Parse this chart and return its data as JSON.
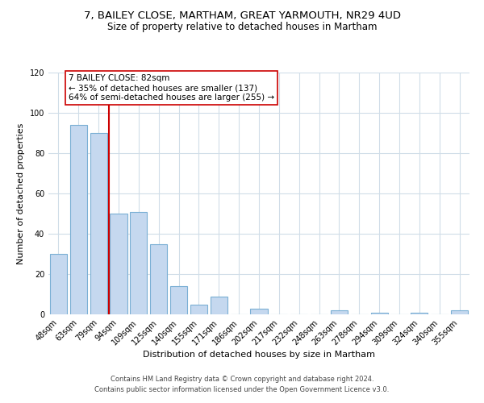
{
  "title": "7, BAILEY CLOSE, MARTHAM, GREAT YARMOUTH, NR29 4UD",
  "subtitle": "Size of property relative to detached houses in Martham",
  "xlabel": "Distribution of detached houses by size in Martham",
  "ylabel": "Number of detached properties",
  "bar_labels": [
    "48sqm",
    "63sqm",
    "79sqm",
    "94sqm",
    "109sqm",
    "125sqm",
    "140sqm",
    "155sqm",
    "171sqm",
    "186sqm",
    "202sqm",
    "217sqm",
    "232sqm",
    "248sqm",
    "263sqm",
    "278sqm",
    "294sqm",
    "309sqm",
    "324sqm",
    "340sqm",
    "355sqm"
  ],
  "bar_values": [
    30,
    94,
    90,
    50,
    51,
    35,
    14,
    5,
    9,
    0,
    3,
    0,
    0,
    0,
    2,
    0,
    1,
    0,
    1,
    0,
    2
  ],
  "bar_color": "#c5d8ef",
  "bar_edge_color": "#7aafd4",
  "vline_color": "#cc0000",
  "annotation_text": "7 BAILEY CLOSE: 82sqm\n← 35% of detached houses are smaller (137)\n64% of semi-detached houses are larger (255) →",
  "annotation_box_color": "#ffffff",
  "annotation_box_edge": "#cc0000",
  "ylim": [
    0,
    120
  ],
  "yticks": [
    0,
    20,
    40,
    60,
    80,
    100,
    120
  ],
  "footer_line1": "Contains HM Land Registry data © Crown copyright and database right 2024.",
  "footer_line2": "Contains public sector information licensed under the Open Government Licence v3.0.",
  "title_fontsize": 9.5,
  "subtitle_fontsize": 8.5,
  "xlabel_fontsize": 8,
  "ylabel_fontsize": 8,
  "tick_fontsize": 7,
  "annotation_fontsize": 7.5,
  "footer_fontsize": 6,
  "bg_color": "#ffffff",
  "grid_color": "#d0dde8"
}
